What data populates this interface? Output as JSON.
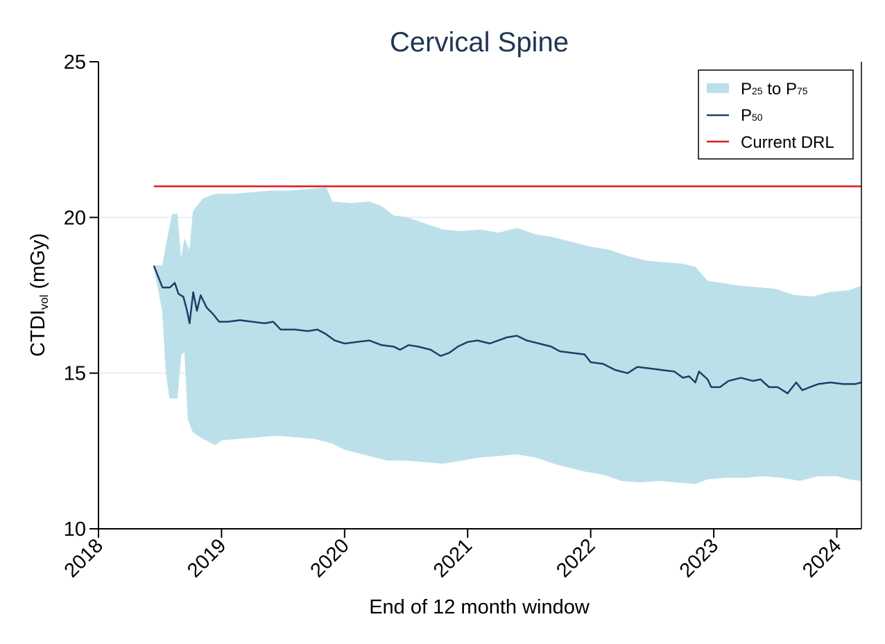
{
  "chart_data": {
    "type": "area",
    "title": "Cervical Spine",
    "xlabel": "End of 12 month window",
    "ylabel": {
      "main": "CTDI",
      "subscript": "vol",
      "unit": " (mGy)"
    },
    "xlim": [
      2018,
      2024.2
    ],
    "ylim": [
      10,
      25
    ],
    "x_ticks": [
      2018,
      2019,
      2020,
      2021,
      2022,
      2023,
      2024
    ],
    "x_tick_labels": [
      "2018",
      "2019",
      "2020",
      "2021",
      "2022",
      "2023",
      "2024"
    ],
    "y_ticks": [
      10,
      15,
      20,
      25
    ],
    "y_tick_labels": [
      "10",
      "15",
      "20",
      "25"
    ],
    "gridlines_y": [
      15,
      20
    ],
    "legend": {
      "position": "top-right",
      "entries": [
        {
          "key": "band",
          "main": "P",
          "sub": "25",
          "mid": " to P",
          "sub2": "75"
        },
        {
          "key": "median",
          "main": "P",
          "sub": "50"
        },
        {
          "key": "drl",
          "label": "Current DRL"
        }
      ]
    },
    "colors": {
      "band": "#bce0ea",
      "median": "#1b3f66",
      "drl": "#e0161b",
      "grid": "#e6eef2",
      "title": "#1f3552"
    },
    "drl": {
      "value": 21.0,
      "x_start": 2018.45,
      "x_end": 2024.2
    },
    "band_upper": [
      [
        2018.45,
        18.45
      ],
      [
        2018.52,
        18.45
      ],
      [
        2018.56,
        19.3
      ],
      [
        2018.6,
        20.1
      ],
      [
        2018.64,
        20.1
      ],
      [
        2018.67,
        18.6
      ],
      [
        2018.7,
        19.3
      ],
      [
        2018.74,
        18.9
      ],
      [
        2018.77,
        20.2
      ],
      [
        2018.85,
        20.6
      ],
      [
        2018.95,
        20.75
      ],
      [
        2019.1,
        20.75
      ],
      [
        2019.25,
        20.8
      ],
      [
        2019.4,
        20.85
      ],
      [
        2019.55,
        20.85
      ],
      [
        2019.7,
        20.9
      ],
      [
        2019.85,
        20.95
      ],
      [
        2019.9,
        20.5
      ],
      [
        2020.05,
        20.45
      ],
      [
        2020.2,
        20.5
      ],
      [
        2020.3,
        20.35
      ],
      [
        2020.4,
        20.05
      ],
      [
        2020.5,
        20.0
      ],
      [
        2020.65,
        19.8
      ],
      [
        2020.8,
        19.6
      ],
      [
        2020.95,
        19.55
      ],
      [
        2021.1,
        19.6
      ],
      [
        2021.25,
        19.5
      ],
      [
        2021.4,
        19.65
      ],
      [
        2021.55,
        19.45
      ],
      [
        2021.7,
        19.35
      ],
      [
        2021.85,
        19.2
      ],
      [
        2022.0,
        19.05
      ],
      [
        2022.15,
        18.95
      ],
      [
        2022.3,
        18.75
      ],
      [
        2022.45,
        18.6
      ],
      [
        2022.6,
        18.55
      ],
      [
        2022.75,
        18.5
      ],
      [
        2022.85,
        18.4
      ],
      [
        2022.95,
        17.95
      ],
      [
        2023.05,
        17.9
      ],
      [
        2023.2,
        17.8
      ],
      [
        2023.35,
        17.75
      ],
      [
        2023.5,
        17.7
      ],
      [
        2023.65,
        17.5
      ],
      [
        2023.8,
        17.45
      ],
      [
        2023.95,
        17.6
      ],
      [
        2024.1,
        17.65
      ],
      [
        2024.2,
        17.8
      ]
    ],
    "band_lower": [
      [
        2018.45,
        18.45
      ],
      [
        2018.52,
        17.0
      ],
      [
        2018.55,
        15.0
      ],
      [
        2018.58,
        14.2
      ],
      [
        2018.64,
        14.2
      ],
      [
        2018.67,
        15.6
      ],
      [
        2018.7,
        15.7
      ],
      [
        2018.73,
        13.5
      ],
      [
        2018.77,
        13.1
      ],
      [
        2018.85,
        12.9
      ],
      [
        2018.95,
        12.7
      ],
      [
        2019.0,
        12.85
      ],
      [
        2019.15,
        12.9
      ],
      [
        2019.3,
        12.95
      ],
      [
        2019.45,
        13.0
      ],
      [
        2019.6,
        12.95
      ],
      [
        2019.75,
        12.9
      ],
      [
        2019.9,
        12.75
      ],
      [
        2020.0,
        12.55
      ],
      [
        2020.1,
        12.45
      ],
      [
        2020.2,
        12.35
      ],
      [
        2020.35,
        12.2
      ],
      [
        2020.5,
        12.2
      ],
      [
        2020.65,
        12.15
      ],
      [
        2020.8,
        12.1
      ],
      [
        2020.95,
        12.2
      ],
      [
        2021.1,
        12.3
      ],
      [
        2021.25,
        12.35
      ],
      [
        2021.4,
        12.4
      ],
      [
        2021.55,
        12.3
      ],
      [
        2021.7,
        12.1
      ],
      [
        2021.8,
        12.0
      ],
      [
        2021.95,
        11.85
      ],
      [
        2022.1,
        11.75
      ],
      [
        2022.25,
        11.55
      ],
      [
        2022.4,
        11.5
      ],
      [
        2022.55,
        11.55
      ],
      [
        2022.7,
        11.5
      ],
      [
        2022.85,
        11.45
      ],
      [
        2022.95,
        11.6
      ],
      [
        2023.1,
        11.65
      ],
      [
        2023.25,
        11.65
      ],
      [
        2023.4,
        11.7
      ],
      [
        2023.55,
        11.65
      ],
      [
        2023.7,
        11.55
      ],
      [
        2023.85,
        11.7
      ],
      [
        2024.0,
        11.7
      ],
      [
        2024.1,
        11.6
      ],
      [
        2024.2,
        11.55
      ]
    ],
    "series": [
      {
        "name": "P50",
        "points": [
          [
            2018.45,
            18.45
          ],
          [
            2018.52,
            17.75
          ],
          [
            2018.58,
            17.75
          ],
          [
            2018.62,
            17.9
          ],
          [
            2018.65,
            17.55
          ],
          [
            2018.69,
            17.45
          ],
          [
            2018.72,
            17.0
          ],
          [
            2018.74,
            16.6
          ],
          [
            2018.77,
            17.6
          ],
          [
            2018.8,
            17.0
          ],
          [
            2018.83,
            17.5
          ],
          [
            2018.88,
            17.1
          ],
          [
            2018.93,
            16.9
          ],
          [
            2018.98,
            16.65
          ],
          [
            2019.05,
            16.65
          ],
          [
            2019.15,
            16.7
          ],
          [
            2019.25,
            16.65
          ],
          [
            2019.35,
            16.6
          ],
          [
            2019.42,
            16.65
          ],
          [
            2019.48,
            16.4
          ],
          [
            2019.6,
            16.4
          ],
          [
            2019.7,
            16.35
          ],
          [
            2019.78,
            16.4
          ],
          [
            2019.85,
            16.25
          ],
          [
            2019.92,
            16.05
          ],
          [
            2020.0,
            15.95
          ],
          [
            2020.1,
            16.0
          ],
          [
            2020.2,
            16.05
          ],
          [
            2020.3,
            15.9
          ],
          [
            2020.4,
            15.85
          ],
          [
            2020.45,
            15.75
          ],
          [
            2020.52,
            15.9
          ],
          [
            2020.6,
            15.85
          ],
          [
            2020.7,
            15.75
          ],
          [
            2020.78,
            15.55
          ],
          [
            2020.85,
            15.65
          ],
          [
            2020.92,
            15.85
          ],
          [
            2021.0,
            16.0
          ],
          [
            2021.08,
            16.05
          ],
          [
            2021.18,
            15.95
          ],
          [
            2021.25,
            16.05
          ],
          [
            2021.32,
            16.15
          ],
          [
            2021.4,
            16.2
          ],
          [
            2021.48,
            16.05
          ],
          [
            2021.58,
            15.95
          ],
          [
            2021.68,
            15.85
          ],
          [
            2021.75,
            15.7
          ],
          [
            2021.85,
            15.65
          ],
          [
            2021.95,
            15.6
          ],
          [
            2022.0,
            15.35
          ],
          [
            2022.1,
            15.3
          ],
          [
            2022.2,
            15.1
          ],
          [
            2022.3,
            15.0
          ],
          [
            2022.38,
            15.2
          ],
          [
            2022.48,
            15.15
          ],
          [
            2022.58,
            15.1
          ],
          [
            2022.68,
            15.05
          ],
          [
            2022.75,
            14.85
          ],
          [
            2022.8,
            14.9
          ],
          [
            2022.85,
            14.7
          ],
          [
            2022.88,
            15.05
          ],
          [
            2022.95,
            14.8
          ],
          [
            2022.98,
            14.55
          ],
          [
            2023.05,
            14.55
          ],
          [
            2023.12,
            14.75
          ],
          [
            2023.22,
            14.85
          ],
          [
            2023.32,
            14.75
          ],
          [
            2023.38,
            14.8
          ],
          [
            2023.45,
            14.55
          ],
          [
            2023.52,
            14.55
          ],
          [
            2023.6,
            14.35
          ],
          [
            2023.67,
            14.7
          ],
          [
            2023.72,
            14.45
          ],
          [
            2023.78,
            14.55
          ],
          [
            2023.85,
            14.65
          ],
          [
            2023.95,
            14.7
          ],
          [
            2024.05,
            14.65
          ],
          [
            2024.15,
            14.65
          ],
          [
            2024.2,
            14.7
          ]
        ]
      }
    ]
  }
}
